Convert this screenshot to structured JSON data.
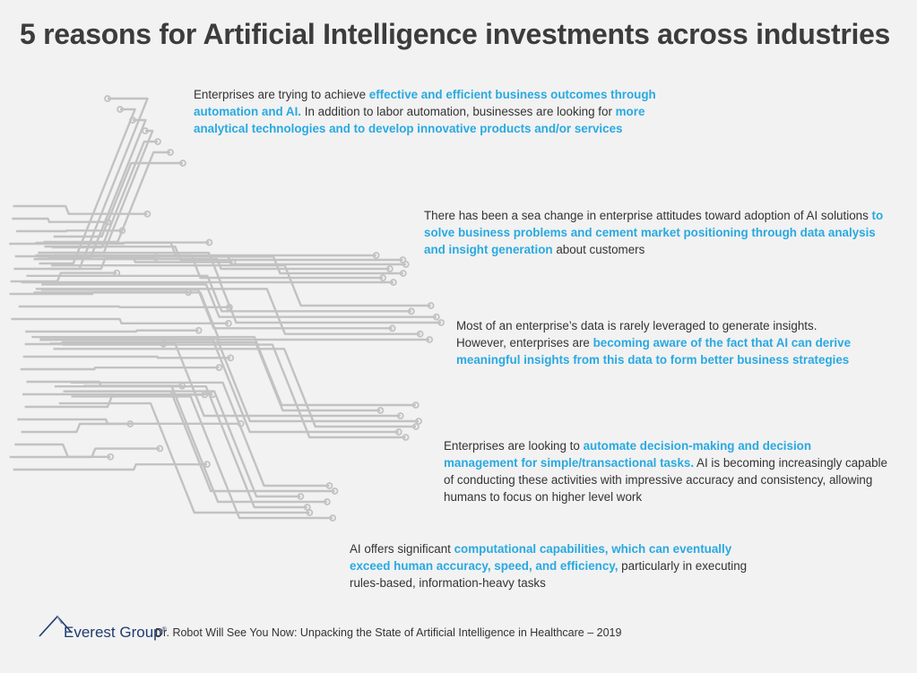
{
  "title": "5 reasons for Artificial Intelligence investments across industries",
  "reasons": [
    {
      "parts": [
        {
          "text": "Enterprises are trying to achieve ",
          "hl": false
        },
        {
          "text": "effective and efficient business outcomes through automation and AI.",
          "hl": true
        },
        {
          "text": " In addition to labor automation, businesses are looking for ",
          "hl": false
        },
        {
          "text": "more analytical technologies and to develop innovative products and/or services",
          "hl": true
        }
      ]
    },
    {
      "parts": [
        {
          "text": "There has been a sea change in enterprise attitudes toward adoption of AI solutions ",
          "hl": false
        },
        {
          "text": "to solve business problems and cement market positioning through data analysis and insight generation",
          "hl": true
        },
        {
          "text": " about customers",
          "hl": false
        }
      ]
    },
    {
      "parts": [
        {
          "text": "Most of an enterprise’s data is rarely leveraged to generate insights. However, enterprises are ",
          "hl": false
        },
        {
          "text": "becoming aware of the fact that AI can derive meaningful insights from this data to form better business strategies",
          "hl": true
        }
      ]
    },
    {
      "parts": [
        {
          "text": "Enterprises are looking to ",
          "hl": false
        },
        {
          "text": "automate decision-making and decision management for simple/transactional tasks.",
          "hl": true
        },
        {
          "text": " AI is becoming increasingly capable of conducting these activities with impressive accuracy and consistency, allowing humans to focus on higher level work",
          "hl": false
        }
      ]
    },
    {
      "parts": [
        {
          "text": "AI offers significant ",
          "hl": false
        },
        {
          "text": "computational capabilities, which can eventually exceed human accuracy, speed, and efficiency,",
          "hl": true
        },
        {
          "text": " particularly in executing rules-based, information-heavy tasks",
          "hl": false
        }
      ]
    }
  ],
  "footer": {
    "brand": "Everest Group",
    "brand_mark": "®",
    "source": "Dr. Robot Will See You Now: Unpacking the State of Artificial Intelligence in Healthcare – 2019"
  },
  "colors": {
    "highlight": "#29a9e1",
    "circuit": "#c2c2c2",
    "background": "#f2f2f2",
    "brand": "#1f3b70"
  }
}
